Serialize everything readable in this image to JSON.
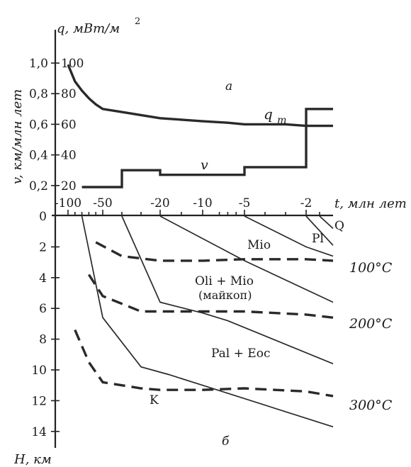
{
  "chart_data": [
    {
      "panel": "а",
      "type": "line",
      "x_axis": {
        "label": "t, млн лет",
        "ticks": [
          "-100",
          "-50",
          "-20",
          "-10",
          "-5",
          "-2"
        ],
        "values": [
          -100,
          -50,
          -20,
          -10,
          -5,
          -2,
          0
        ],
        "scale": "nonuniform"
      },
      "left_axis": {
        "label": "v, км/млн лет",
        "ticks": [
          "0,2",
          "0,4",
          "0,6",
          "0,8",
          "1,0"
        ],
        "values": [
          0.2,
          0.4,
          0.6,
          0.8,
          1.0
        ]
      },
      "right_axis": {
        "label": "q, мВт/м²",
        "label_text": "q, мВт/м",
        "label_sup": "2",
        "ticks": [
          "20",
          "40",
          "60",
          "80",
          "100"
        ],
        "values": [
          20,
          40,
          60,
          80,
          100
        ]
      },
      "series": [
        {
          "name": "qm",
          "label_main": "q",
          "label_sub": "m",
          "axis": "right",
          "x": [
            -100,
            -90,
            -80,
            -70,
            -60,
            -50,
            -40,
            -30,
            -20,
            -15,
            -10,
            -7,
            -5,
            -3,
            -2,
            -1,
            0
          ],
          "y": [
            99,
            88,
            82,
            77,
            73,
            70,
            68,
            66,
            64,
            63,
            62,
            61,
            60,
            60,
            59,
            59,
            59
          ]
        },
        {
          "name": "v",
          "label_main": "v",
          "axis": "left",
          "step": true,
          "x": [
            -80,
            -40,
            -40,
            -20,
            -20,
            -5,
            -5,
            -2,
            -2,
            0
          ],
          "y": [
            0.19,
            0.19,
            0.3,
            0.3,
            0.27,
            0.27,
            0.32,
            0.32,
            0.7,
            0.7
          ]
        }
      ]
    },
    {
      "panel": "б",
      "type": "line",
      "x_axis": {
        "label": "t, млн лет",
        "same_as": "а"
      },
      "y_axis": {
        "label": "H, км",
        "ticks": [
          "0",
          "2",
          "4",
          "6",
          "8",
          "10",
          "12",
          "14"
        ],
        "values": [
          0,
          2,
          4,
          6,
          8,
          10,
          12,
          14
        ],
        "inverted": true
      },
      "burial_curves": [
        {
          "name": "K",
          "x": [
            -80,
            -50,
            -30,
            -18,
            -10,
            0
          ],
          "y": [
            0,
            6.6,
            9.8,
            10.3,
            11.0,
            13.7
          ]
        },
        {
          "name": "Pal + Eoc",
          "x": [
            -40,
            -20,
            -10,
            -7,
            0
          ],
          "y": [
            0,
            5.6,
            6.3,
            6.8,
            9.6
          ]
        },
        {
          "name": "Oli + Mio",
          "x": [
            -20,
            -5,
            0
          ],
          "y": [
            0,
            2.9,
            5.6
          ]
        },
        {
          "name": "Mio",
          "x": [
            -5,
            -2,
            0
          ],
          "y": [
            0,
            2.0,
            2.6
          ]
        },
        {
          "name": "Pl",
          "x": [
            -2,
            0
          ],
          "y": [
            0,
            1.9
          ]
        },
        {
          "name": "Q",
          "x": [
            -1,
            0
          ],
          "y": [
            0,
            0.8
          ]
        }
      ],
      "isotherms": [
        {
          "label": "100°C",
          "x": [
            -60,
            -40,
            -20,
            -10,
            -5,
            -2,
            0
          ],
          "y": [
            1.7,
            2.6,
            2.9,
            2.9,
            2.8,
            2.8,
            2.9
          ]
        },
        {
          "label": "200°C",
          "x": [
            -70,
            -50,
            -30,
            -20,
            -10,
            -5,
            -2,
            0
          ],
          "y": [
            3.8,
            5.2,
            6.2,
            6.2,
            6.2,
            6.2,
            6.4,
            6.6
          ]
        },
        {
          "label": "300°C",
          "x": [
            -90,
            -70,
            -50,
            -30,
            -20,
            -10,
            -5,
            -2,
            0
          ],
          "y": [
            7.4,
            9.5,
            10.8,
            11.2,
            11.3,
            11.3,
            11.2,
            11.4,
            11.7
          ]
        }
      ],
      "unit_labels": [
        "Mio",
        "Oli + Mio",
        "(майкоп)",
        "Pal + Eoc",
        "K",
        "Pl",
        "Q"
      ]
    }
  ]
}
